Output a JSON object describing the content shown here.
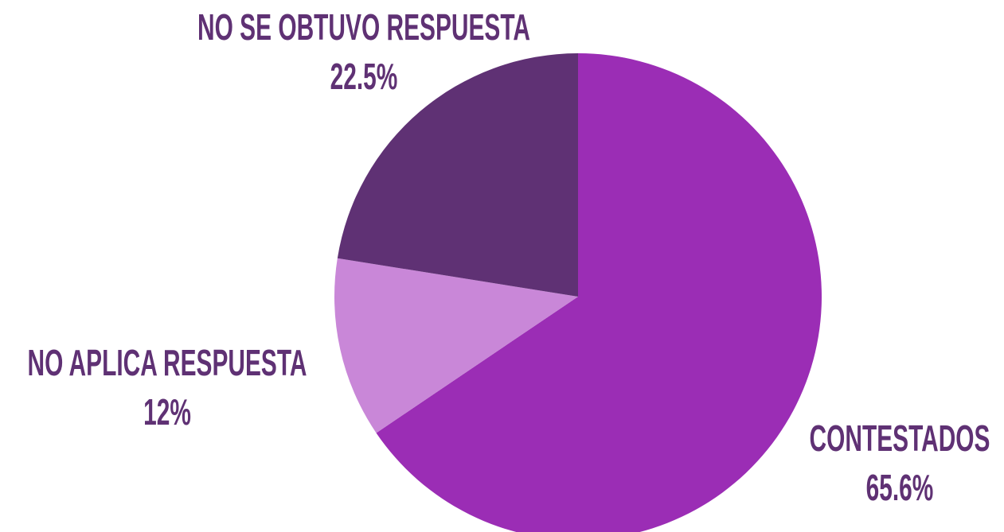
{
  "chart_data": {
    "type": "pie",
    "categories": [
      "CONTESTADOS",
      "NO APLICA RESPUESTA",
      "NO SE OBTUVO RESPUESTA"
    ],
    "values": [
      65.6,
      12,
      22.5
    ],
    "value_labels": [
      "65.6%",
      "12%",
      "22.5%"
    ],
    "colors": [
      "#9b2db5",
      "#c987d8",
      "#5f3174"
    ]
  }
}
